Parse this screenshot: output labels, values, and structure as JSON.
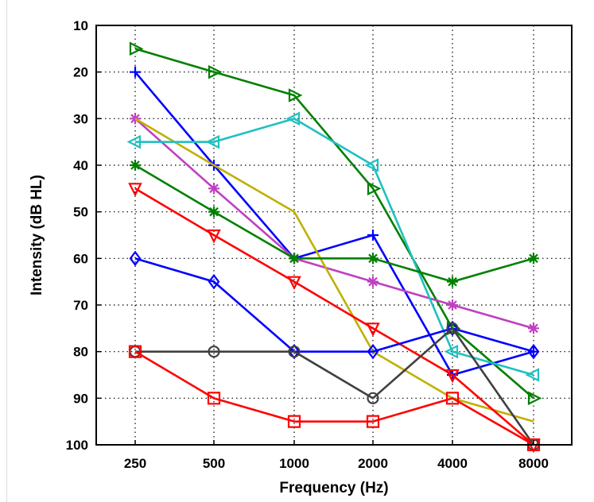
{
  "chart_data": {
    "type": "line",
    "title": "",
    "xlabel": "Frequency (Hz)",
    "ylabel": "Intensity (dB HL)",
    "categories": [
      "250",
      "500",
      "1000",
      "2000",
      "4000",
      "8000"
    ],
    "ylim": [
      10,
      100
    ],
    "y_inverted": true,
    "y_ticks": [
      10,
      20,
      30,
      40,
      50,
      60,
      70,
      80,
      90,
      100
    ],
    "grid": "dotted",
    "legend": "none",
    "series": [
      {
        "color": "#008000",
        "marker": "triangle-right",
        "values": [
          15,
          20,
          25,
          45,
          75,
          90
        ]
      },
      {
        "color": "#0000ff",
        "marker": "plus",
        "values": [
          20,
          40,
          60,
          55,
          85,
          80
        ]
      },
      {
        "color": "#c040c0",
        "marker": "asterisk",
        "values": [
          30,
          45,
          60,
          65,
          70,
          75
        ]
      },
      {
        "color": "#c0b000",
        "marker": "none",
        "values": [
          30,
          40,
          50,
          80,
          90,
          95
        ]
      },
      {
        "color": "#20c0c0",
        "marker": "triangle-left",
        "values": [
          35,
          35,
          30,
          40,
          80,
          85
        ]
      },
      {
        "color": "#008000",
        "marker": "asterisk",
        "values": [
          40,
          50,
          60,
          60,
          65,
          60
        ]
      },
      {
        "color": "#ff0000",
        "marker": "triangle-down",
        "values": [
          45,
          55,
          65,
          75,
          85,
          100
        ]
      },
      {
        "color": "#0000ff",
        "marker": "diamond",
        "values": [
          60,
          65,
          80,
          80,
          75,
          80
        ]
      },
      {
        "color": "#404040",
        "marker": "circle",
        "values": [
          80,
          80,
          80,
          90,
          75,
          100
        ]
      },
      {
        "color": "#ff0000",
        "marker": "square",
        "values": [
          80,
          90,
          95,
          95,
          90,
          100
        ]
      }
    ]
  }
}
